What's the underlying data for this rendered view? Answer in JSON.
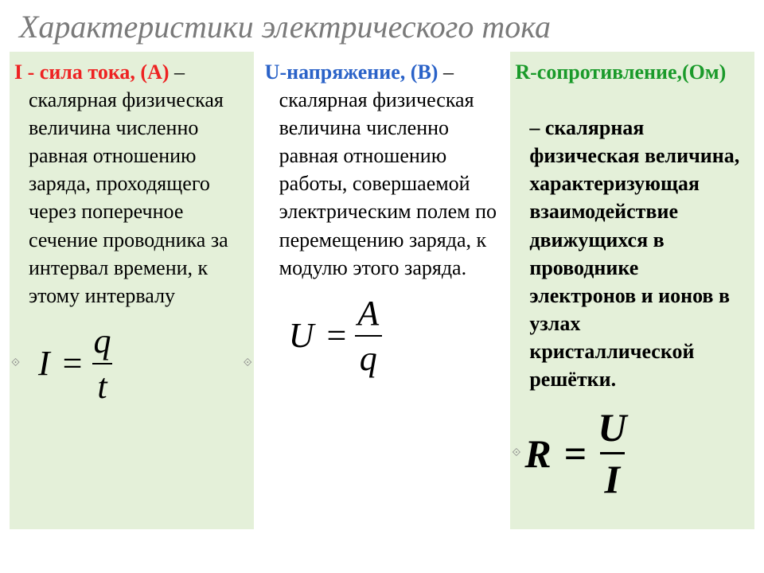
{
  "title": "Характеристики электрического тока",
  "columns": {
    "current": {
      "symbol": "I",
      "symbol_color": "#e02020",
      "label": " - сила тока, (А)",
      "definition": " – скалярная физическая величина численно равная отношению заряда, проходящего через поперечное сечение проводника за интервал времени, к этому интервалу",
      "formula": {
        "lhs": "I",
        "num": "q",
        "den": "t"
      }
    },
    "voltage": {
      "symbol": "U",
      "symbol_color": "#2a62c8",
      "label": "-напряжение, (В)",
      "definition": " – скалярная физическая величина численно равная отношению работы, совершаемой электрическим полем по перемещению заряда, к модулю этого заряда.",
      "formula": {
        "lhs": "U",
        "num": "A",
        "den": "q"
      }
    },
    "resistance": {
      "symbol": "R",
      "symbol_color": "#1a9a2a",
      "label": "-сопротивление,(Ом)",
      "definition": " – скалярная физическая величина, характеризующая взаимодействие движущихся в проводнике электронов и ионов в узлах кристаллической решётки.",
      "formula": {
        "lhs": "R",
        "num": "U",
        "den": "I"
      }
    }
  },
  "style": {
    "shade_bg": "#e4f0d9",
    "title_color": "#7a7a7a",
    "body_bg": "#ffffff",
    "def_fontsize": 26,
    "title_fontsize": 40,
    "formula_fontsize": 44,
    "formula_big_fontsize": 50
  }
}
